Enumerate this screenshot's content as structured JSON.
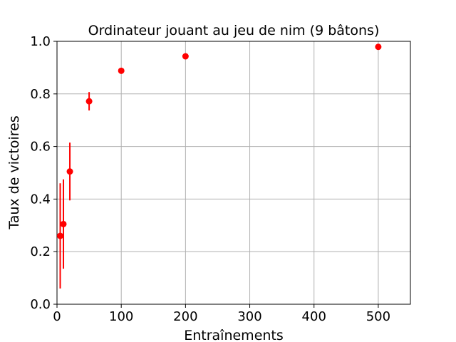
{
  "chart_data": {
    "type": "scatter",
    "title": "Ordinateur jouant au jeu de nim (9 bâtons)",
    "xlabel": "Entraînements",
    "ylabel": "Taux de victoires",
    "xlim": [
      0,
      550
    ],
    "ylim": [
      0.0,
      1.0
    ],
    "xticks": [
      0,
      100,
      200,
      300,
      400,
      500
    ],
    "yticks": [
      0.0,
      0.2,
      0.4,
      0.6,
      0.8,
      1.0
    ],
    "xtick_labels": [
      "0",
      "100",
      "200",
      "300",
      "400",
      "500"
    ],
    "ytick_labels": [
      "0.0",
      "0.2",
      "0.4",
      "0.6",
      "0.8",
      "1.0"
    ],
    "grid": true,
    "color": "#ff0000",
    "series": [
      {
        "points": [
          {
            "x": 5,
            "y": 0.26,
            "err": 0.2
          },
          {
            "x": 10,
            "y": 0.305,
            "err": 0.17
          },
          {
            "x": 20,
            "y": 0.505,
            "err": 0.11
          },
          {
            "x": 50,
            "y": 0.772,
            "err": 0.035
          },
          {
            "x": 100,
            "y": 0.888,
            "err": 0.01
          },
          {
            "x": 200,
            "y": 0.943,
            "err": 0.005
          },
          {
            "x": 500,
            "y": 0.979,
            "err": 0.003
          }
        ]
      }
    ]
  }
}
